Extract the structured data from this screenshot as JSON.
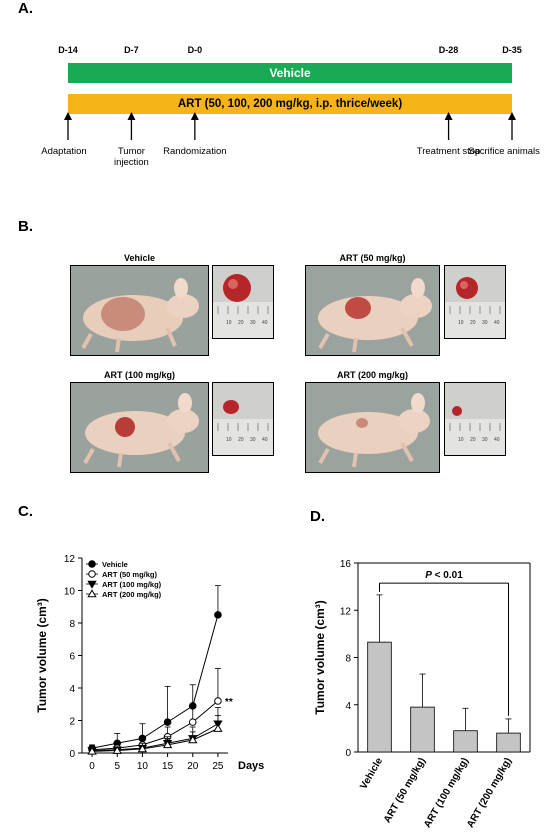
{
  "panelA": {
    "label": "A.",
    "days": [
      {
        "text": "D-14",
        "day": -14
      },
      {
        "text": "D-7",
        "day": -7
      },
      {
        "text": "D-0",
        "day": 0
      },
      {
        "text": "D-28",
        "day": 28
      },
      {
        "text": "D-35",
        "day": 35
      }
    ],
    "vehicle_bar": "Vehicle",
    "art_bar": "ART (50, 100, 200 mg/kg, i.p. thrice/week)",
    "events": [
      {
        "text": "Adaptation",
        "day": -14
      },
      {
        "text": "Tumor\ninjection",
        "day": -7
      },
      {
        "text": "Randomization",
        "day": 0
      },
      {
        "text": "Treatment stop",
        "day": 28
      },
      {
        "text": "Sacrifice animals",
        "day": 35
      }
    ],
    "colors": {
      "vehicle": "#1aaa55",
      "art": "#f7b418"
    }
  },
  "panelB": {
    "label": "B.",
    "groups": [
      {
        "title": "Vehicle"
      },
      {
        "title": "ART (50 mg/kg)"
      },
      {
        "title": "ART (100 mg/kg)"
      },
      {
        "title": "ART (200 mg/kg)"
      }
    ],
    "ruler_ticks": [
      "10",
      "20",
      "30",
      "40"
    ]
  },
  "panelC": {
    "label": "C.",
    "chart_data": {
      "type": "line",
      "xlabel": "Days",
      "ylabel": "Tumor volume (cm³)",
      "x": [
        0,
        5,
        10,
        15,
        20,
        25
      ],
      "xlim": [
        -2,
        27
      ],
      "ylim": [
        0,
        12
      ],
      "yticks": [
        0,
        2,
        4,
        6,
        8,
        10,
        12
      ],
      "series": [
        {
          "name": "Vehicle",
          "marker": "filled-circle",
          "values": [
            0.3,
            0.6,
            0.9,
            1.9,
            2.9,
            8.5
          ],
          "errors": [
            0.2,
            0.6,
            0.9,
            2.2,
            1.3,
            1.8
          ]
        },
        {
          "name": "ART (50 mg/kg)",
          "marker": "open-circle",
          "values": [
            0.2,
            0.3,
            0.5,
            1.0,
            1.9,
            3.2
          ],
          "errors": [
            0.1,
            0.2,
            0.4,
            0.6,
            0.9,
            2.0
          ]
        },
        {
          "name": "ART (100 mg/kg)",
          "marker": "filled-triangle-down",
          "values": [
            0.15,
            0.2,
            0.3,
            0.6,
            0.9,
            1.8
          ],
          "errors": [
            0.1,
            0.15,
            0.3,
            0.4,
            0.7,
            1.0
          ]
        },
        {
          "name": "ART (200 mg/kg)",
          "marker": "open-triangle-up",
          "values": [
            0.1,
            0.15,
            0.25,
            0.5,
            0.8,
            1.5
          ],
          "errors": [
            0.1,
            0.1,
            0.2,
            0.4,
            0.5,
            0.8
          ]
        }
      ],
      "annotation": "**"
    }
  },
  "panelD": {
    "label": "D.",
    "chart_data": {
      "type": "bar",
      "ylabel": "Tumor volume (cm³)",
      "categories": [
        "Vehicle",
        "ART (50 mg/kg)",
        "ART (100 mg/kg)",
        "ART (200 mg/kg)"
      ],
      "values": [
        9.3,
        3.8,
        1.8,
        1.6
      ],
      "errors": [
        4.0,
        2.8,
        1.9,
        1.2
      ],
      "ylim": [
        0,
        16
      ],
      "yticks": [
        0,
        4,
        8,
        12,
        16
      ],
      "significance": {
        "p_prefix": "P",
        "p_suffix": " < 0.01"
      }
    }
  }
}
